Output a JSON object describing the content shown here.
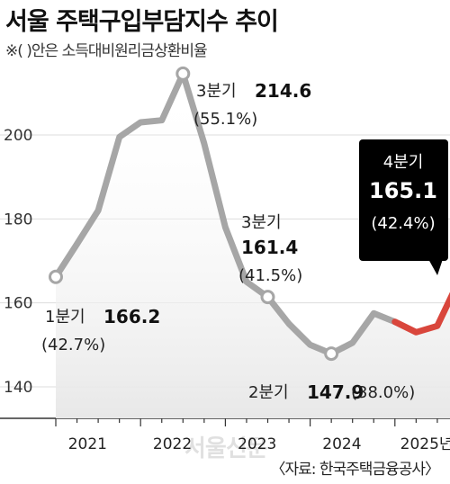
{
  "title": "서울 주택구입부담지수 추이",
  "subtitle": "※(   )안은 소득대비원리금상환비율",
  "source": "〈자료: 한국주택금융공사〉",
  "watermark": "서울신문",
  "colors": {
    "line_gray": "#a6a6a6",
    "line_red": "#d9463c",
    "area_fill": "#ececec",
    "callout_bg": "#000000",
    "callout_text": "#ffffff"
  },
  "chart_data": {
    "type": "line",
    "x_tick_labels": [
      "2021",
      "2022",
      "2023",
      "2024",
      "2025년"
    ],
    "y_tick_labels": [
      "140",
      "160",
      "180",
      "200"
    ],
    "ylim": [
      135,
      222
    ],
    "grid": true,
    "x": [
      "2021Q1",
      "2021Q2",
      "2021Q3",
      "2021Q4",
      "2022Q1",
      "2022Q2",
      "2022Q3",
      "2022Q4",
      "2023Q1",
      "2023Q2",
      "2023Q3",
      "2023Q4",
      "2024Q1",
      "2024Q2",
      "2024Q3",
      "2024Q4",
      "2025Q1",
      "2025Q2",
      "2025Q3",
      "2025Q4"
    ],
    "values": [
      166.2,
      174.0,
      182.0,
      199.5,
      203.0,
      203.5,
      214.6,
      198.0,
      178.0,
      165.0,
      161.4,
      155.0,
      150.0,
      147.9,
      150.5,
      157.5,
      155.5,
      153.0,
      154.5,
      165.1
    ],
    "highlight_from_index": 16,
    "annotations": [
      {
        "index": 0,
        "period": "1분기",
        "value": "166.2",
        "ratio": "(42.7%)"
      },
      {
        "index": 6,
        "period": "3분기",
        "value": "214.6",
        "ratio": "(55.1%)"
      },
      {
        "index": 10,
        "period": "3분기",
        "value": "161.4",
        "ratio": "(41.5%)"
      },
      {
        "index": 13,
        "period": "2분기",
        "value": "147.9",
        "ratio": "(38.0%)"
      },
      {
        "index": 19,
        "period": "4분기",
        "value": "165.1",
        "ratio": "(42.4%)"
      }
    ]
  }
}
